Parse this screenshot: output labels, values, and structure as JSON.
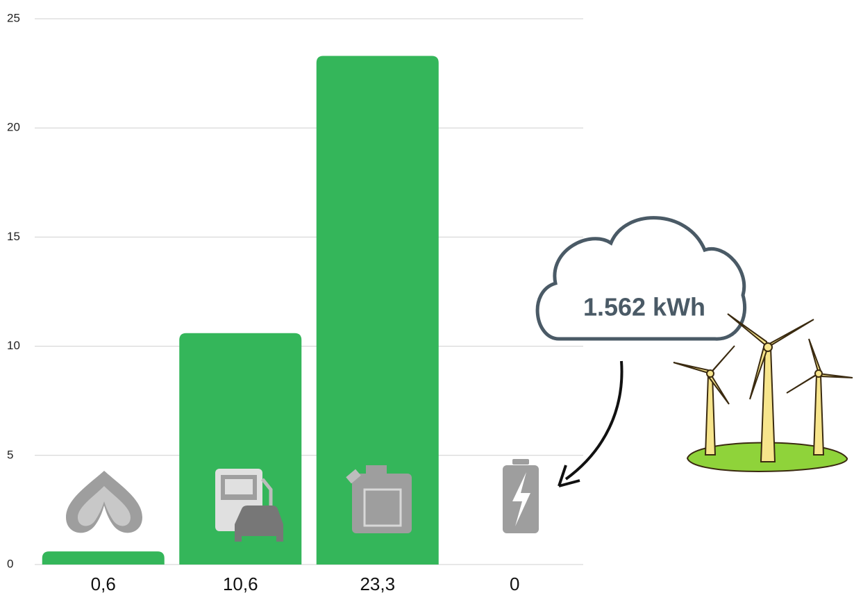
{
  "chart_data": {
    "type": "bar",
    "values": [
      0.6,
      10.6,
      23.3,
      0
    ],
    "value_labels": [
      "0,6",
      "10,6",
      "23,3",
      "0"
    ],
    "color": "#34b65a",
    "ylim": [
      0,
      25
    ],
    "yticks": [
      0,
      5,
      10,
      15,
      20,
      25
    ],
    "grid": true,
    "annotation": "1.562 kWh"
  }
}
